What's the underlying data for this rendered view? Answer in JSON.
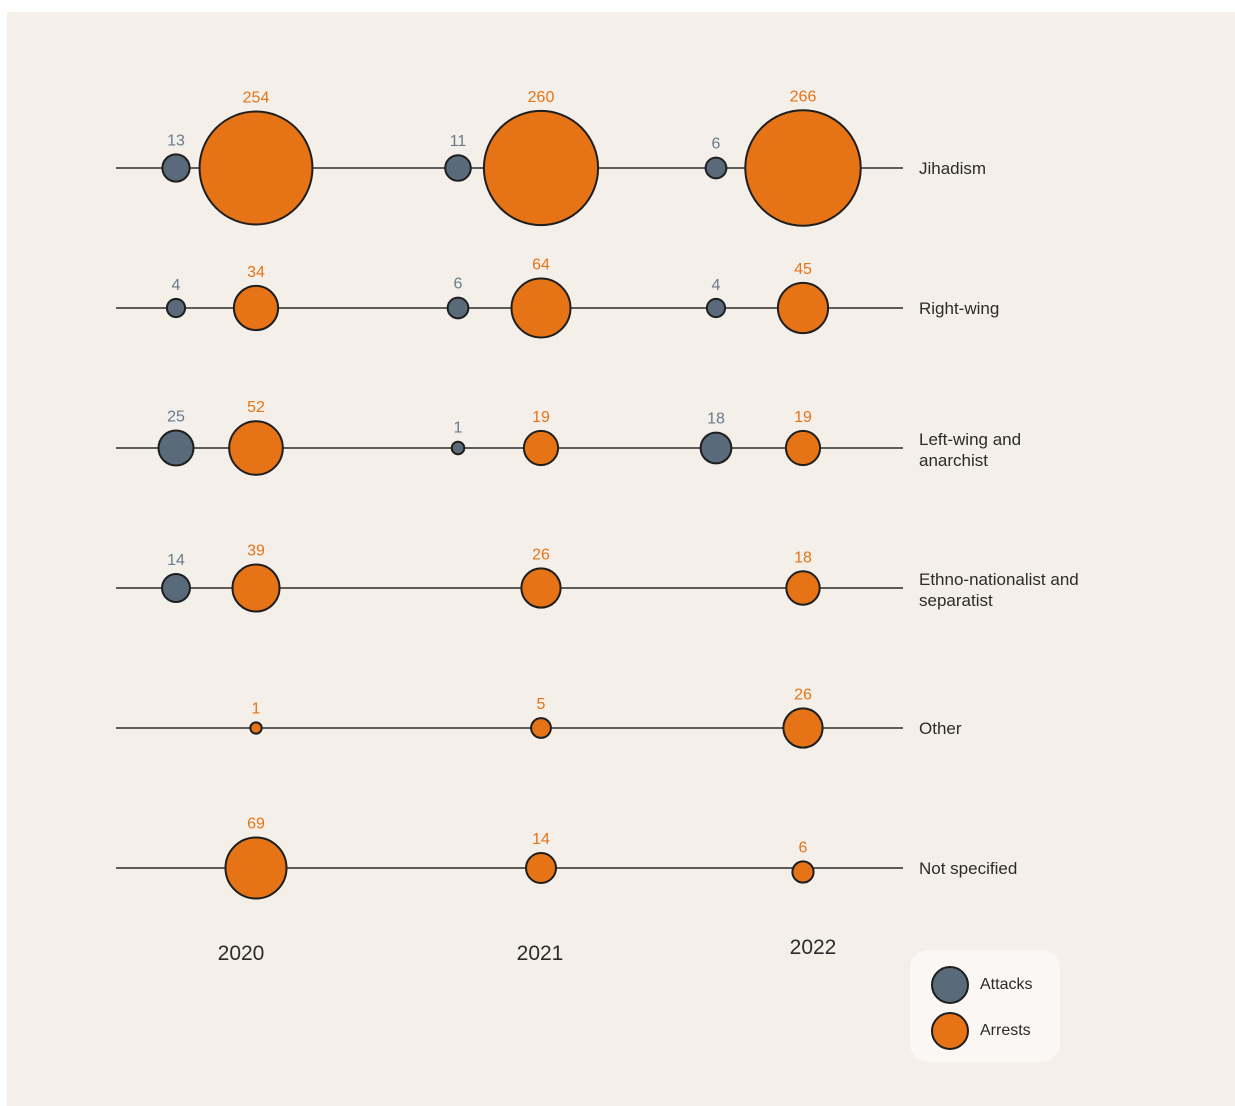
{
  "colors": {
    "background": "#f4efe9",
    "attacks": "#596b7b",
    "arrests": "#e67316",
    "attacks_label": "#6a7a8a",
    "arrests_label": "#e67316",
    "line": "#2b2b2b",
    "legend_bg": "#faf7f4"
  },
  "chart_data": {
    "type": "bubble",
    "years": [
      "2020",
      "2021",
      "2022"
    ],
    "categories": [
      {
        "name": "Jihadism",
        "attacks": [
          13,
          11,
          6
        ],
        "arrests": [
          254,
          260,
          266
        ]
      },
      {
        "name": "Right-wing",
        "attacks": [
          4,
          6,
          4
        ],
        "arrests": [
          34,
          64,
          45
        ]
      },
      {
        "name": "Left-wing and anarchist",
        "attacks": [
          25,
          1,
          18
        ],
        "arrests": [
          52,
          19,
          19
        ]
      },
      {
        "name": "Ethno-nationalist and separatist",
        "attacks": [
          14,
          null,
          null
        ],
        "arrests": [
          39,
          26,
          18
        ]
      },
      {
        "name": "Other",
        "attacks": [
          null,
          null,
          null
        ],
        "arrests": [
          1,
          5,
          26
        ]
      },
      {
        "name": "Not specified",
        "attacks": [
          null,
          null,
          null
        ],
        "arrests": [
          69,
          14,
          6
        ]
      }
    ],
    "series": [
      {
        "name": "Attacks",
        "color": "#596b7b"
      },
      {
        "name": "Arrests",
        "color": "#e67316"
      }
    ],
    "legend_position": "bottom-right"
  }
}
